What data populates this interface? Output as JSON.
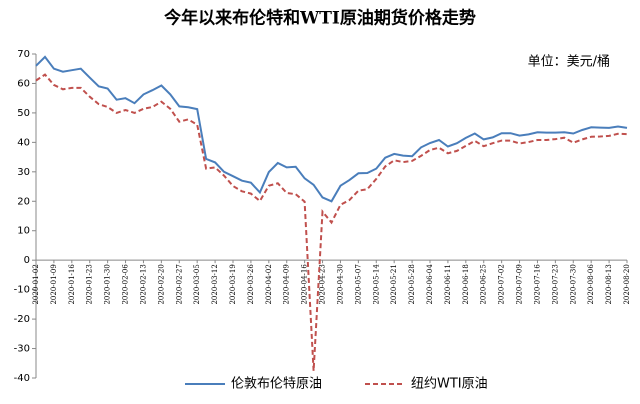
{
  "chart_data": {
    "type": "line",
    "title": "今年以来布伦特和WTI原油期货价格走势",
    "unit_label": "单位：美元/桶",
    "categories": [
      "2020-01-02",
      null,
      "2020-01-09",
      null,
      "2020-01-16",
      null,
      "2020-01-23",
      null,
      "2020-01-30",
      null,
      "2020-02-06",
      null,
      "2020-02-13",
      null,
      "2020-02-20",
      null,
      "2020-02-27",
      null,
      "2020-03-05",
      null,
      "2020-03-12",
      null,
      "2020-03-19",
      null,
      "2020-03-26",
      null,
      "2020-04-02",
      null,
      "2020-04-09",
      null,
      "2020-04-16",
      null,
      "2020-04-23",
      null,
      "2020-04-30",
      null,
      "2020-05-07",
      null,
      "2020-05-14",
      null,
      "2020-05-21",
      null,
      "2020-05-28",
      null,
      "2020-06-04",
      null,
      "2020-06-11",
      null,
      "2020-06-18",
      null,
      "2020-06-25",
      null,
      "2020-07-02",
      null,
      "2020-07-09",
      null,
      "2020-07-16",
      null,
      "2020-07-23",
      null,
      "2020-07-30",
      null,
      "2020-08-06",
      null,
      "2020-08-13",
      null,
      "2020-08-20"
    ],
    "series": [
      {
        "name": "伦敦布伦特原油",
        "color": "#4a7ebb",
        "dash": false,
        "values": [
          66,
          69,
          65,
          64,
          64.5,
          65,
          62,
          59,
          58.3,
          54.5,
          55,
          53.3,
          56.3,
          57.7,
          59.3,
          56.3,
          52.2,
          51.9,
          51.3,
          34.4,
          33.2,
          30,
          28.5,
          27,
          26.3,
          23,
          29.9,
          33,
          31.5,
          31.7,
          27.8,
          25.6,
          21.3,
          20,
          25.3,
          27.2,
          29.5,
          29.6,
          31.1,
          34.8,
          36.1,
          35.5,
          35.3,
          38.3,
          39.8,
          40.8,
          38.6,
          39.7,
          41.5,
          43,
          41,
          41.7,
          43.1,
          43.1,
          42.3,
          42.7,
          43.4,
          43.3,
          43.3,
          43.4,
          43,
          44.2,
          45.1,
          45,
          44.9,
          45.4,
          44.9
        ]
      },
      {
        "name": "纽约WTI原油",
        "color": "#c0504d",
        "dash": true,
        "values": [
          61,
          63,
          59.5,
          58,
          58.5,
          58.5,
          55.5,
          53,
          52,
          50,
          51,
          50,
          51.4,
          52,
          53.8,
          51.4,
          47,
          47.8,
          46,
          31.1,
          31.5,
          28.7,
          25.2,
          23.4,
          22.6,
          20.1,
          25.3,
          26.1,
          22.8,
          22.4,
          19.9,
          -37.6,
          16.5,
          12.8,
          18.8,
          20.4,
          23.6,
          24.1,
          27.6,
          31.8,
          33.9,
          33.3,
          33.7,
          35.4,
          37.4,
          38.2,
          36.3,
          37.1,
          38.8,
          40.5,
          38.7,
          39.7,
          40.6,
          40.6,
          39.6,
          40.1,
          40.8,
          40.8,
          41.1,
          41.6,
          39.9,
          41,
          41.9,
          42,
          42.2,
          42.9,
          42.8
        ]
      }
    ],
    "ylim": [
      -40,
      70
    ],
    "yticks": [
      -40,
      -30,
      -20,
      -10,
      0,
      10,
      20,
      30,
      40,
      50,
      60,
      70
    ],
    "grid": false
  }
}
